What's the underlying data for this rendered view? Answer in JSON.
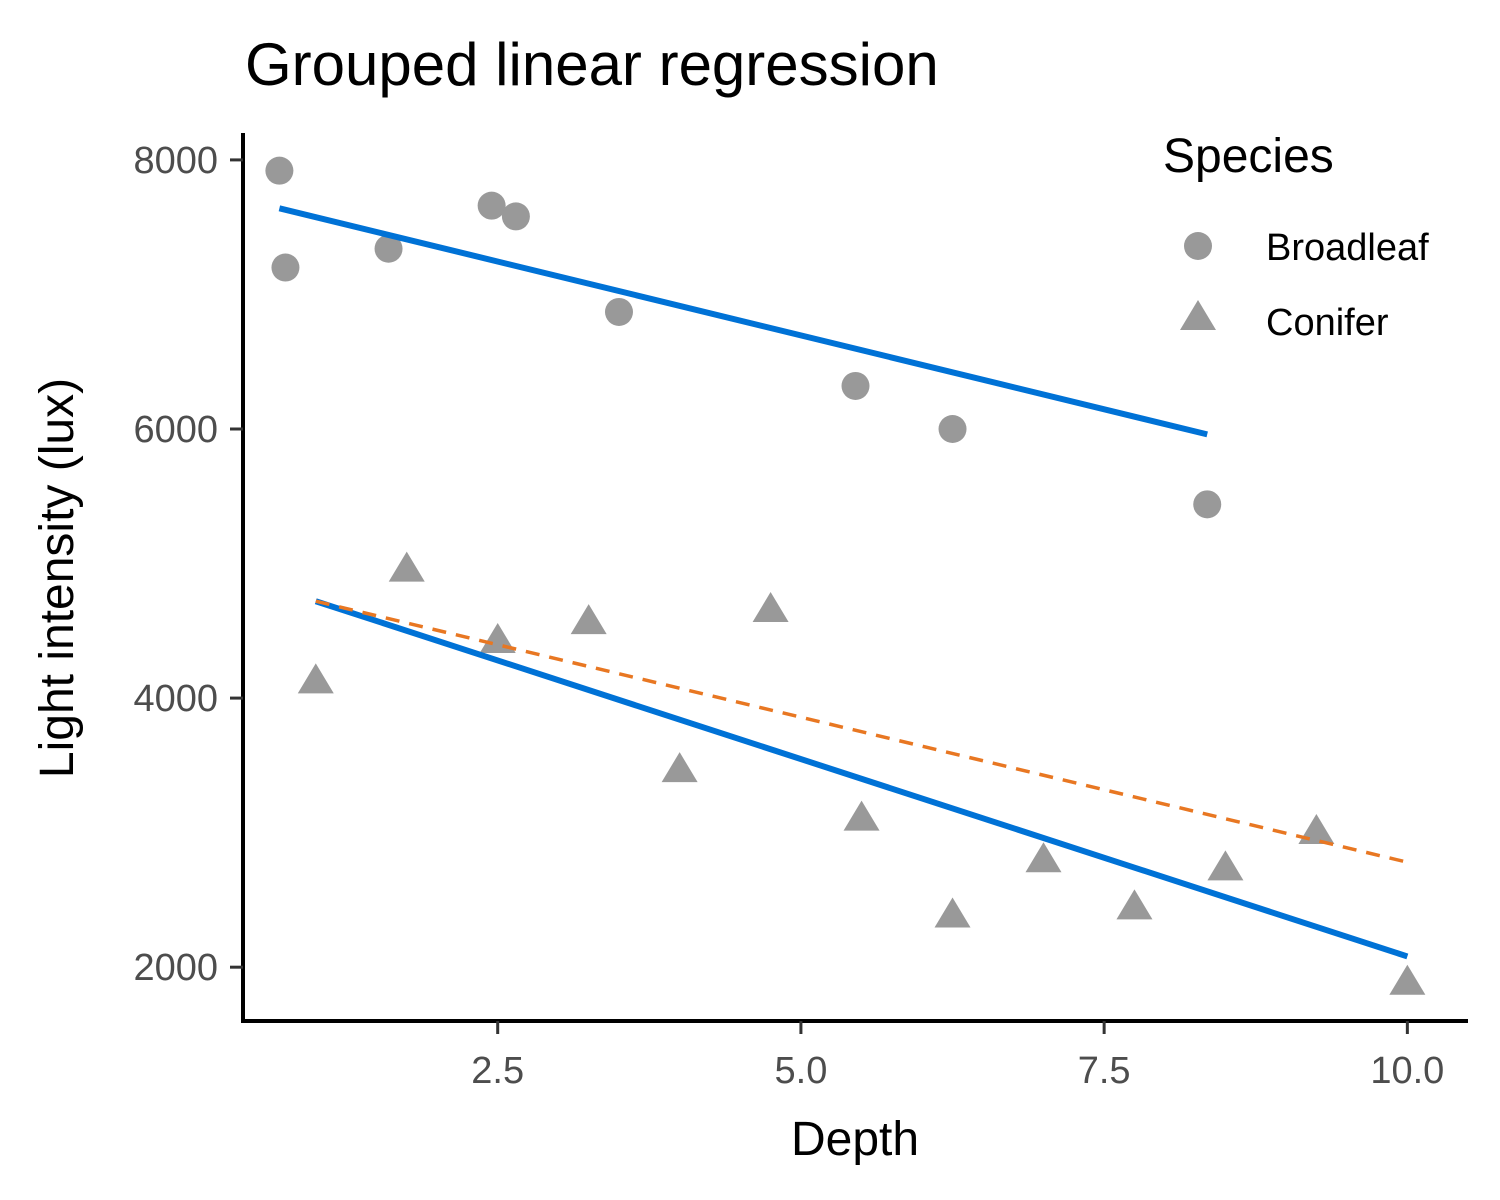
{
  "chart_data": {
    "type": "scatter",
    "title": "Grouped linear regression",
    "xlabel": "Depth",
    "ylabel": "Light intensity (lux)",
    "xlim": [
      0.4,
      10.5
    ],
    "ylim": [
      1600,
      8200
    ],
    "x_ticks": [
      2.5,
      5.0,
      7.5,
      10.0
    ],
    "x_tick_labels": [
      "2.5",
      "5.0",
      "7.5",
      "10.0"
    ],
    "y_ticks": [
      2000,
      4000,
      6000,
      8000
    ],
    "y_tick_labels": [
      "2000",
      "4000",
      "6000",
      "8000"
    ],
    "grid": false,
    "legend": {
      "title": "Species",
      "placement": "top-right",
      "entries": [
        {
          "label": "Broadleaf",
          "shape": "circle"
        },
        {
          "label": "Conifer",
          "shape": "triangle"
        }
      ]
    },
    "point_color": "#999999",
    "series": [
      {
        "name": "Broadleaf",
        "shape": "circle",
        "points": [
          {
            "x": 0.7,
            "y": 7920
          },
          {
            "x": 0.75,
            "y": 7200
          },
          {
            "x": 1.6,
            "y": 7340
          },
          {
            "x": 2.45,
            "y": 7660
          },
          {
            "x": 2.65,
            "y": 7580
          },
          {
            "x": 3.5,
            "y": 6870
          },
          {
            "x": 5.45,
            "y": 6320
          },
          {
            "x": 6.25,
            "y": 6000
          },
          {
            "x": 8.35,
            "y": 5440
          }
        ]
      },
      {
        "name": "Conifer",
        "shape": "triangle",
        "points": [
          {
            "x": 1.0,
            "y": 4120
          },
          {
            "x": 1.75,
            "y": 4950
          },
          {
            "x": 2.5,
            "y": 4420
          },
          {
            "x": 3.25,
            "y": 4560
          },
          {
            "x": 4.0,
            "y": 3460
          },
          {
            "x": 4.75,
            "y": 4650
          },
          {
            "x": 5.5,
            "y": 3100
          },
          {
            "x": 6.25,
            "y": 2380
          },
          {
            "x": 7.0,
            "y": 2790
          },
          {
            "x": 7.75,
            "y": 2440
          },
          {
            "x": 8.5,
            "y": 2730
          },
          {
            "x": 9.25,
            "y": 3000
          },
          {
            "x": 10.0,
            "y": 1880
          }
        ]
      }
    ],
    "fit_lines": [
      {
        "group": "Broadleaf",
        "style": "solid",
        "color": "#0072d6",
        "x": [
          0.7,
          8.35
        ],
        "y": [
          7640,
          5960
        ]
      },
      {
        "group": "Conifer",
        "style": "solid",
        "color": "#0072d6",
        "x": [
          1.0,
          10.0
        ],
        "y": [
          4720,
          2080
        ]
      },
      {
        "group": "Conifer",
        "style": "dashed",
        "color": "#e87722",
        "x": [
          1.0,
          10.0
        ],
        "y": [
          4720,
          2780
        ]
      }
    ]
  }
}
